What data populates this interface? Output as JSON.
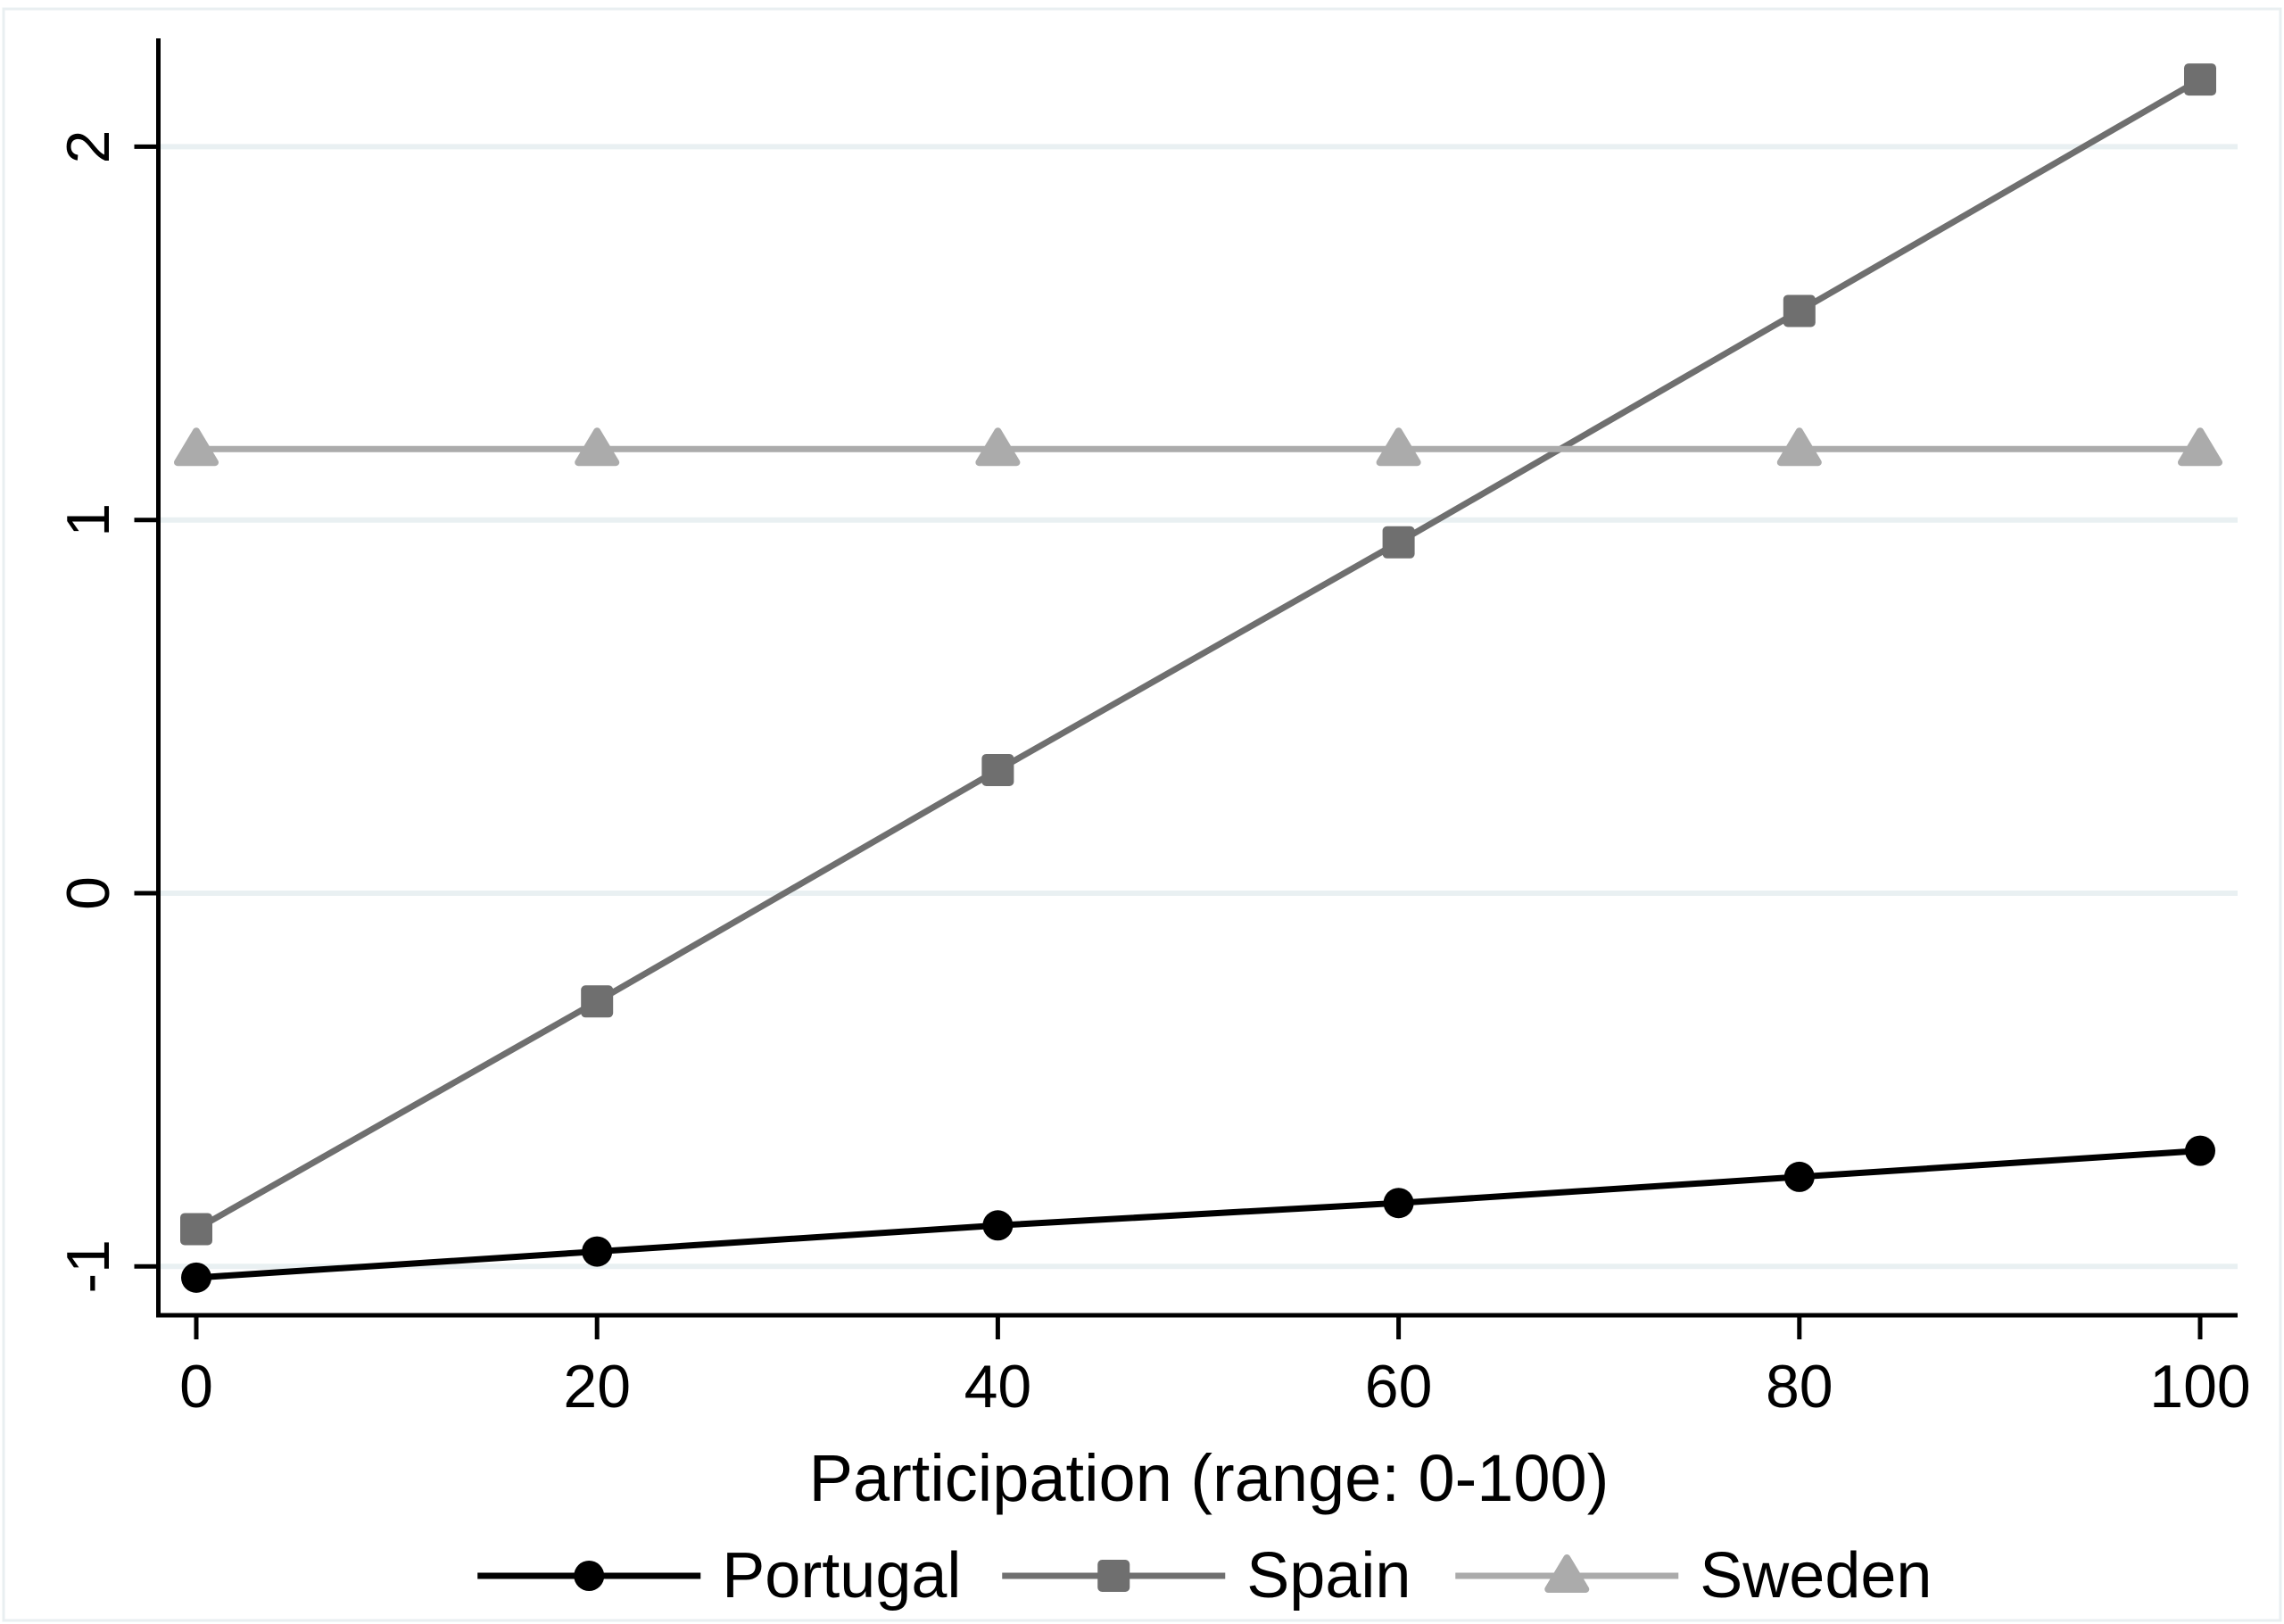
{
  "figure": {
    "title": "",
    "background_color": "#ffffff",
    "frame_border_color": "#e9eff1"
  },
  "chart_data": {
    "type": "line",
    "x": [
      0,
      20,
      40,
      60,
      80,
      100
    ],
    "series": [
      {
        "name": "Portugal",
        "values": [
          -1.03,
          -0.96,
          -0.89,
          -0.83,
          -0.76,
          -0.69
        ],
        "color": "#000000",
        "marker": "circle"
      },
      {
        "name": "Spain",
        "values": [
          -0.9,
          -0.29,
          0.33,
          0.94,
          1.56,
          2.18
        ],
        "color": "#6f6f6f",
        "marker": "square"
      },
      {
        "name": "Sweden",
        "values": [
          1.19,
          1.19,
          1.19,
          1.19,
          1.19,
          1.19
        ],
        "color": "#ababab",
        "marker": "triangle"
      }
    ],
    "title": "",
    "xlabel": "Participation (range: 0-100)",
    "ylabel": "",
    "xticks": [
      0,
      20,
      40,
      60,
      80,
      100
    ],
    "xticklabels": [
      "0",
      "20",
      "40",
      "60",
      "80",
      "100"
    ],
    "yticks": [
      -1,
      0,
      1,
      2
    ],
    "yticklabels": [
      "-1",
      "0",
      "1",
      "2"
    ],
    "xlim": [
      -2,
      102
    ],
    "ylim": [
      -1.13,
      2.29
    ],
    "grid": true,
    "gridline_color": "#e9f0f2",
    "axis_color": "#000000",
    "legend_position": "bottom",
    "legend_labels": [
      "Portugal",
      "Spain",
      "Sweden"
    ]
  }
}
